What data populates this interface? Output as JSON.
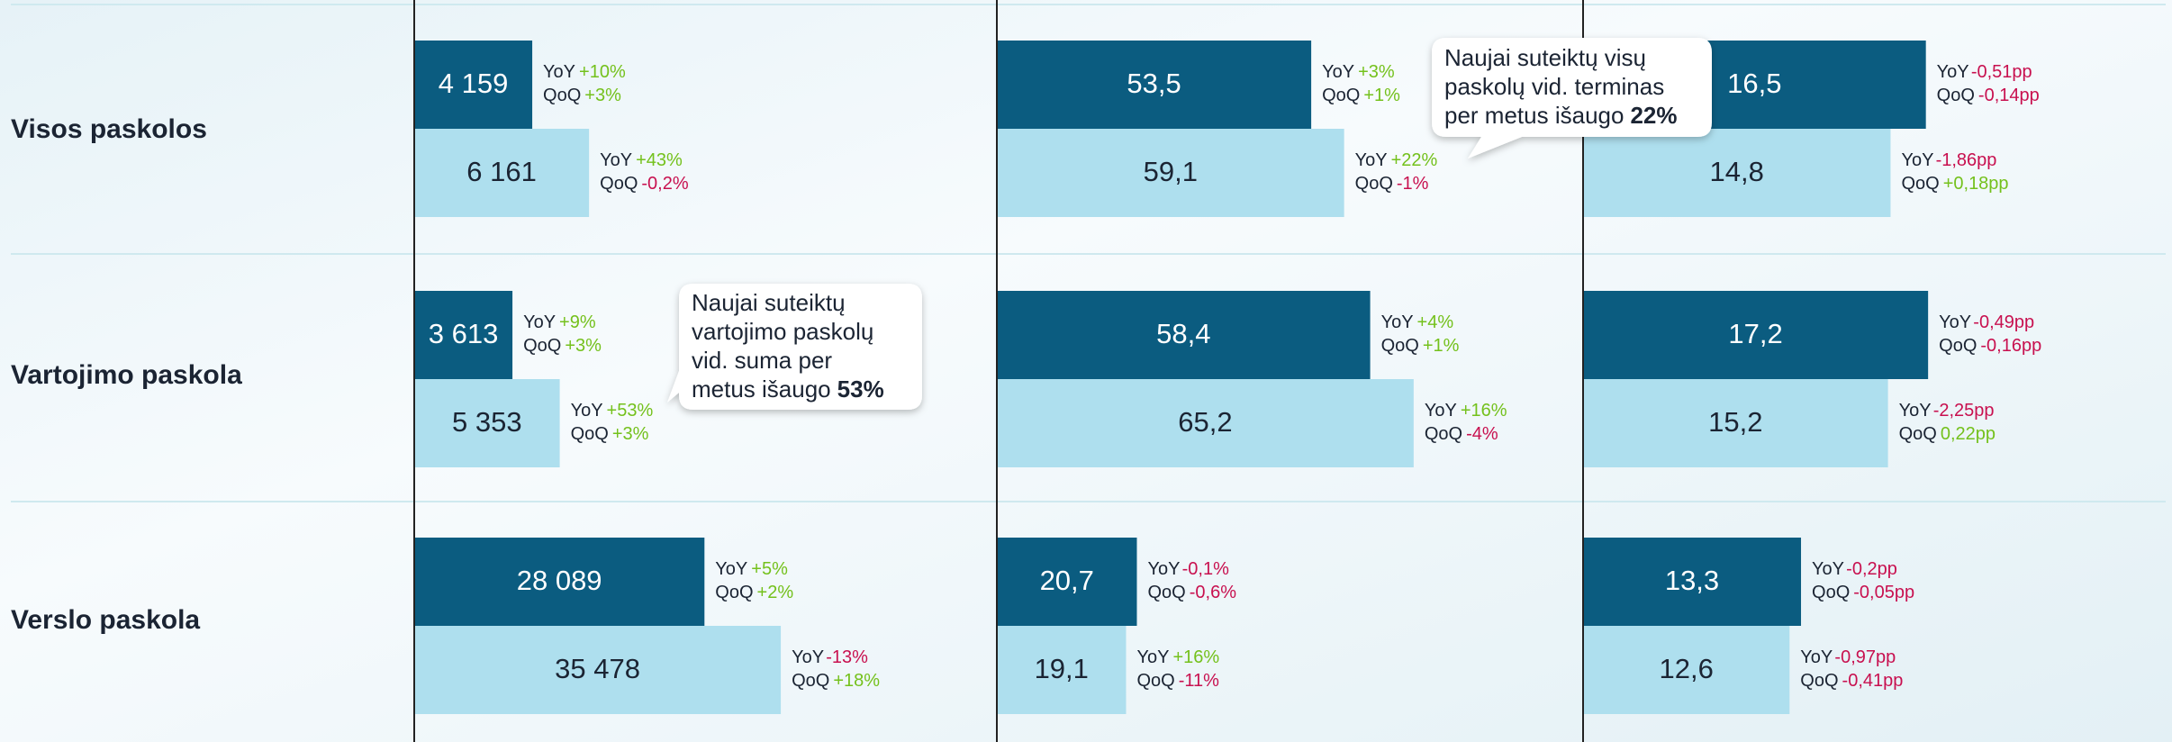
{
  "chart_data": {
    "type": "bar",
    "orientation": "horizontal",
    "categories": [
      "Visos paskolos",
      "Vartojimo paskola",
      "Verslo paskola"
    ],
    "change_labels": [
      "YoY",
      "QoQ"
    ],
    "positive_color": "#74c11c",
    "negative_color": "#c8104f",
    "panels": [
      {
        "xlims": [
          [
            0,
            20500
          ],
          [
            0,
            21400
          ],
          [
            0,
            56300
          ]
        ],
        "series": [
          {
            "color": "#0b5c80",
            "values": [
              4159,
              3613,
              28089
            ],
            "value_labels": [
              "4 159",
              "3 613",
              "28 089"
            ],
            "changes": [
              [
                "+10%",
                "+3%"
              ],
              [
                "+9%",
                "+3%"
              ],
              [
                "+5%",
                "+2%"
              ]
            ]
          },
          {
            "color": "#aedfee",
            "values": [
              6161,
              5353,
              35478
            ],
            "value_labels": [
              "6 161",
              "5 353",
              "35 478"
            ],
            "changes": [
              [
                "+43%",
                "-0,2%"
              ],
              [
                "+53%",
                "+3%"
              ],
              [
                "-13%",
                "+18%"
              ]
            ]
          }
        ]
      },
      {
        "xlims": [
          [
            0,
            99
          ],
          [
            0,
            91
          ],
          [
            0,
            86
          ]
        ],
        "series": [
          {
            "color": "#0b5c80",
            "values": [
              53.5,
              58.4,
              20.7
            ],
            "value_labels": [
              "53,5",
              "58,4",
              "20,7"
            ],
            "changes": [
              [
                "+3%",
                "+1%"
              ],
              [
                "+4%",
                "+1%"
              ],
              [
                "-0,1%",
                "-0,6%"
              ]
            ]
          },
          {
            "color": "#aedfee",
            "values": [
              59.1,
              65.2,
              19.1
            ],
            "value_labels": [
              "59,1",
              "65,2",
              "19,1"
            ],
            "changes": [
              [
                "+22%",
                "-1%"
              ],
              [
                "+16%",
                "-4%"
              ],
              [
                "+16%",
                "-11%"
              ]
            ]
          }
        ]
      },
      {
        "xlims": [
          [
            0,
            28
          ],
          [
            0,
            29
          ],
          [
            0,
            35.5
          ]
        ],
        "series": [
          {
            "color": "#0b5c80",
            "values": [
              16.5,
              17.2,
              13.3
            ],
            "value_labels": [
              "16,5",
              "17,2",
              "13,3"
            ],
            "changes": [
              [
                "-0,51pp",
                "-0,14pp"
              ],
              [
                "-0,49pp",
                "-0,16pp"
              ],
              [
                "-0,2pp",
                "-0,05pp"
              ]
            ]
          },
          {
            "color": "#aedfee",
            "values": [
              14.8,
              15.2,
              12.6
            ],
            "value_labels": [
              "14,8",
              "15,2",
              "12,6"
            ],
            "changes": [
              [
                "-1,86pp",
                "+0,18pp"
              ],
              [
                "-2,25pp",
                "0,22pp"
              ],
              [
                "-0,97pp",
                "-0,41pp"
              ]
            ]
          }
        ]
      }
    ],
    "annotations": [
      {
        "lines": [
          "Naujai suteiktų visų",
          "paskolų vid. terminas",
          "per metus išaugo"
        ],
        "highlight": "22%"
      },
      {
        "lines": [
          "Naujai suteiktų",
          "vartojimo paskolų",
          "vid. suma per",
          "metus išaugo"
        ],
        "highlight": "53%"
      }
    ]
  }
}
